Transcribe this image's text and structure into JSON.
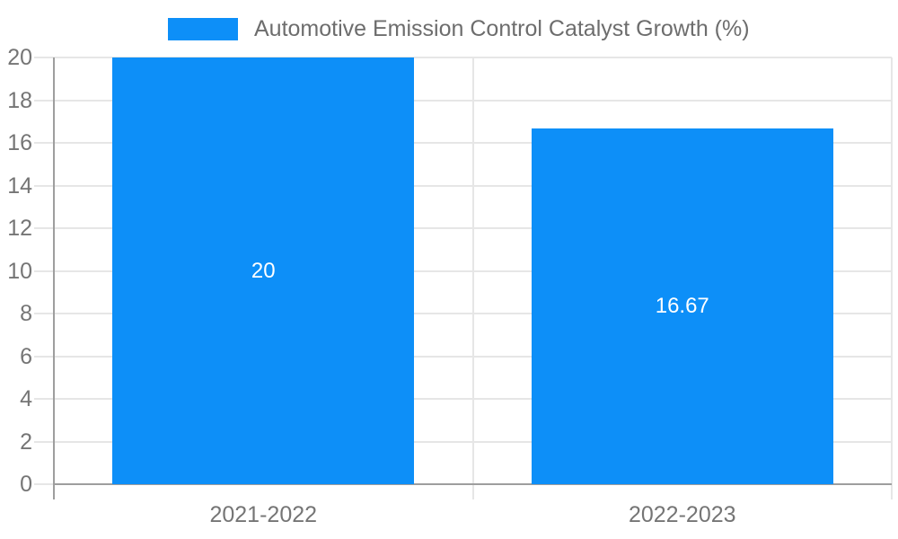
{
  "chart_data": {
    "type": "bar",
    "title": "Automotive Emission Control Catalyst Growth (%)",
    "categories": [
      "2021-2022",
      "2022-2023"
    ],
    "values": [
      20,
      16.67
    ],
    "value_labels": [
      "20",
      "16.67"
    ],
    "ylim": [
      0,
      20
    ],
    "yticks": [
      0,
      2,
      4,
      6,
      8,
      10,
      12,
      14,
      16,
      18,
      20
    ],
    "grid": true,
    "legend_position": "top",
    "colors": {
      "bar": "#0d8ff8",
      "value_label": "#ffffff",
      "grid": "#e6e6e6",
      "axis": "#9e9e9e",
      "tick_text": "#757575",
      "legend_text": "#6d6d6d",
      "background": "#ffffff"
    }
  }
}
